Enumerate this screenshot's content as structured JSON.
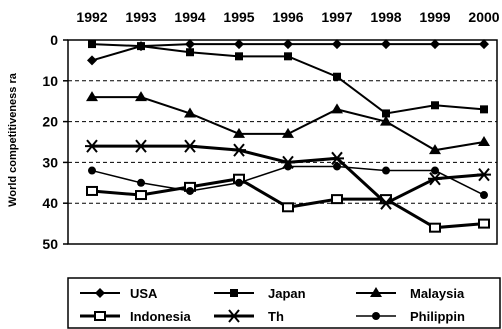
{
  "chart_data": {
    "type": "line",
    "title": "",
    "xlabel": "",
    "ylabel": "World competitiveness ra",
    "categories": [
      "1992",
      "1993",
      "1994",
      "1995",
      "1996",
      "1997",
      "1998",
      "1999",
      "2000"
    ],
    "ylim": [
      0,
      50
    ],
    "y_inverted": true,
    "yticks": [
      0,
      10,
      20,
      30,
      40,
      50
    ],
    "x_axis_position": "top",
    "grid": "horizontal-dashed",
    "legend_position": "bottom",
    "series": [
      {
        "name": "USA",
        "marker": "diamond",
        "values": [
          5,
          1.5,
          1,
          1,
          1,
          1,
          1,
          1,
          1
        ]
      },
      {
        "name": "Japan",
        "marker": "filled-square",
        "values": [
          1,
          1.5,
          3,
          4,
          4,
          9,
          18,
          16,
          17
        ]
      },
      {
        "name": "Malaysia",
        "marker": "triangle",
        "values": [
          14,
          14,
          18,
          23,
          23,
          17,
          20,
          27,
          25
        ]
      },
      {
        "name": "Indonesia",
        "marker": "open-square",
        "values": [
          37,
          38,
          36,
          34,
          41,
          39,
          39,
          46,
          45
        ]
      },
      {
        "name": "Th",
        "marker": "asterisk",
        "values": [
          26,
          26,
          26,
          27,
          30,
          29,
          40,
          34,
          33
        ]
      },
      {
        "name": "Philippin",
        "marker": "circle",
        "values": [
          32,
          35,
          37,
          35,
          31,
          31,
          32,
          32,
          38
        ]
      }
    ]
  }
}
